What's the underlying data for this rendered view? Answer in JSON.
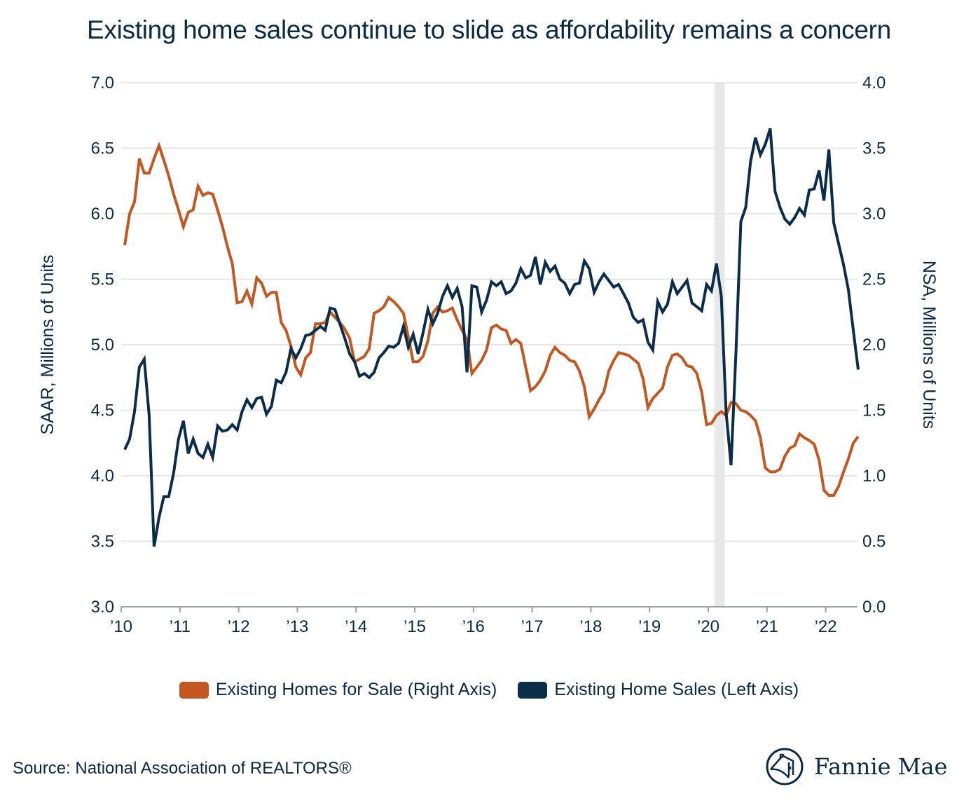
{
  "title": "Existing home sales continue to slide as affordability remains a concern",
  "source": "Source: National Association of REALTORS®",
  "logo": {
    "text": "Fannie Mae"
  },
  "colors": {
    "sales": "#0a2d4a",
    "for_sale": "#c4571f",
    "recession": "#e8e8e8",
    "grid": "#e6e6e6"
  },
  "chart_data": {
    "type": "line",
    "title": "Existing home sales continue to slide as affordability remains a concern",
    "frequency": "monthly",
    "x_start": "2010-01",
    "x_end": "2022-07",
    "x_ticks": [
      "’10",
      "’11",
      "’12",
      "’13",
      "’14",
      "’15",
      "’16",
      "’17",
      "’18",
      "’19",
      "’20",
      "’21",
      "’22"
    ],
    "ylabel_left": "SAAR, Millions of Units",
    "ylabel_right": "NSA, Millions of Units",
    "ylim_left": [
      3.0,
      7.0
    ],
    "ylim_right": [
      0.0,
      4.0
    ],
    "y_ticks_left": [
      "3.0",
      "3.5",
      "4.0",
      "4.5",
      "5.0",
      "5.5",
      "6.0",
      "6.5",
      "7.0"
    ],
    "y_ticks_right": [
      "0.0",
      "0.5",
      "1.0",
      "1.5",
      "2.0",
      "2.5",
      "3.0",
      "3.5",
      "4.0"
    ],
    "grid": true,
    "legend_position": "bottom",
    "shaded_period": {
      "start": "2020-02",
      "end": "2020-04"
    },
    "series": [
      {
        "name": "Existing Homes for Sale (Right Axis)",
        "axis": "right",
        "color": "#c4571f",
        "values": [
          2.76,
          3.0,
          3.09,
          3.42,
          3.31,
          3.31,
          3.42,
          3.52,
          3.41,
          3.29,
          3.15,
          3.03,
          2.9,
          3.01,
          3.03,
          3.21,
          3.14,
          3.16,
          3.15,
          3.03,
          2.9,
          2.75,
          2.62,
          2.32,
          2.33,
          2.41,
          2.31,
          2.51,
          2.47,
          2.37,
          2.4,
          2.4,
          2.17,
          2.11,
          1.99,
          1.83,
          1.77,
          1.9,
          1.94,
          2.16,
          2.16,
          2.17,
          2.25,
          2.21,
          2.17,
          2.12,
          2.05,
          1.87,
          1.89,
          1.91,
          1.97,
          2.24,
          2.26,
          2.29,
          2.36,
          2.33,
          2.29,
          2.24,
          2.06,
          1.87,
          1.87,
          1.91,
          2.03,
          2.24,
          2.29,
          2.25,
          2.26,
          2.28,
          2.19,
          2.11,
          2.04,
          1.78,
          1.83,
          1.88,
          1.96,
          2.13,
          2.15,
          2.12,
          2.11,
          2.01,
          2.04,
          2.01,
          1.83,
          1.65,
          1.68,
          1.73,
          1.8,
          1.92,
          1.98,
          1.94,
          1.92,
          1.88,
          1.87,
          1.8,
          1.68,
          1.45,
          1.51,
          1.58,
          1.64,
          1.8,
          1.88,
          1.94,
          1.93,
          1.92,
          1.89,
          1.86,
          1.74,
          1.52,
          1.59,
          1.63,
          1.67,
          1.83,
          1.92,
          1.93,
          1.9,
          1.84,
          1.83,
          1.78,
          1.64,
          1.39,
          1.4,
          1.46,
          1.49,
          1.46,
          1.56,
          1.55,
          1.5,
          1.49,
          1.46,
          1.42,
          1.29,
          1.06,
          1.03,
          1.03,
          1.05,
          1.15,
          1.21,
          1.23,
          1.32,
          1.29,
          1.27,
          1.24,
          1.12,
          0.89,
          0.85,
          0.85,
          0.92,
          1.03,
          1.13,
          1.25,
          1.3
        ]
      },
      {
        "name": "Existing Home Sales (Left Axis)",
        "axis": "left",
        "color": "#0a2d4a",
        "values": [
          4.2,
          4.28,
          4.49,
          4.83,
          4.89,
          4.46,
          3.46,
          3.68,
          3.84,
          3.84,
          4.02,
          4.28,
          4.42,
          4.17,
          4.28,
          4.17,
          4.14,
          4.24,
          4.14,
          4.38,
          4.34,
          4.35,
          4.39,
          4.35,
          4.49,
          4.58,
          4.52,
          4.59,
          4.6,
          4.47,
          4.53,
          4.73,
          4.71,
          4.79,
          4.97,
          4.9,
          4.97,
          5.07,
          5.08,
          5.11,
          5.14,
          5.11,
          5.28,
          5.27,
          5.16,
          5.05,
          4.93,
          4.87,
          4.76,
          4.78,
          4.75,
          4.79,
          4.9,
          4.94,
          4.99,
          4.98,
          5.01,
          5.14,
          4.98,
          5.08,
          4.93,
          5.09,
          5.27,
          5.16,
          5.24,
          5.37,
          5.45,
          5.36,
          5.43,
          5.29,
          4.79,
          5.45,
          5.44,
          5.25,
          5.34,
          5.48,
          5.45,
          5.48,
          5.39,
          5.41,
          5.47,
          5.58,
          5.51,
          5.53,
          5.67,
          5.46,
          5.63,
          5.56,
          5.6,
          5.5,
          5.47,
          5.39,
          5.46,
          5.47,
          5.64,
          5.58,
          5.4,
          5.48,
          5.54,
          5.49,
          5.44,
          5.46,
          5.39,
          5.32,
          5.21,
          5.17,
          5.19,
          5.02,
          4.96,
          5.33,
          5.25,
          5.31,
          5.48,
          5.39,
          5.44,
          5.49,
          5.32,
          5.29,
          5.26,
          5.46,
          5.41,
          5.62,
          5.37,
          4.48,
          4.08,
          4.94,
          5.94,
          6.05,
          6.4,
          6.58,
          6.45,
          6.53,
          6.65,
          6.17,
          6.05,
          5.96,
          5.92,
          5.97,
          6.04,
          5.99,
          6.18,
          6.19,
          6.33,
          6.1,
          6.49,
          5.93,
          5.77,
          5.61,
          5.42,
          5.11,
          4.81
        ]
      }
    ]
  }
}
